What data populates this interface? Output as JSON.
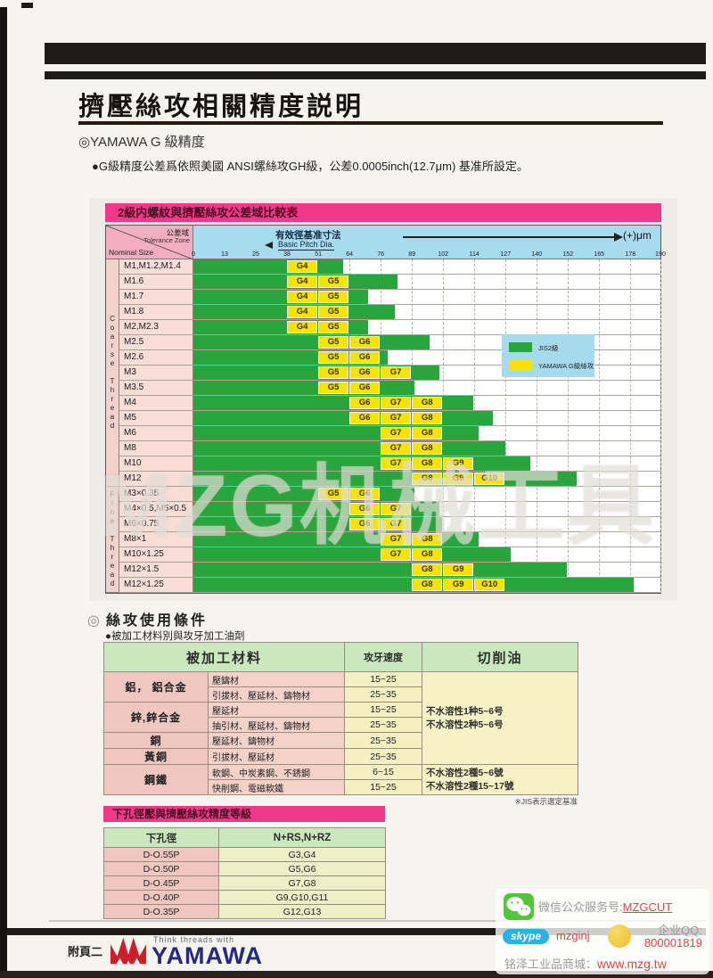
{
  "page": {
    "title": "擠壓絲攻相關精度説明",
    "subtitle": "◎YAMAWA G 級精度",
    "note": "●G級精度公差爲依照美國 ANSI螺絲攻GH級，公差0.0005inch(12.7μm) 基准所設定。"
  },
  "watermark": "MZG机械工具",
  "chart_data": {
    "type": "bar",
    "title": "2級内螺紋與擠壓絲攻公差域比較表",
    "corner_top": "公差域",
    "corner_top_en": "Tolerance Zone",
    "corner_bottom": "Nominal Size",
    "axis_label_cn": "有效徑基准寸法",
    "axis_label_en": "Basic Pitch Dia.",
    "unit_label": "(+)μm",
    "xlim": [
      0,
      190
    ],
    "ticks": [
      0,
      13,
      25,
      38,
      51,
      64,
      76,
      89,
      102,
      114,
      127,
      140,
      152,
      165,
      178,
      190
    ],
    "grade_band_um": 12.7,
    "legend": [
      {
        "label": "JIS2級",
        "color": "#2aa53d"
      },
      {
        "label": "YAMAWA G級絲攻",
        "color": "#f6e400"
      }
    ],
    "groups": [
      {
        "name": "Coarse Thread",
        "rows": [
          {
            "size": "M1,M1.2,M1.4",
            "jis2_max_um": 61,
            "grades": [
              "G4"
            ]
          },
          {
            "size": "M1.6",
            "jis2_max_um": 83,
            "grades": [
              "G4",
              "G5"
            ]
          },
          {
            "size": "M1.7",
            "jis2_max_um": 71,
            "grades": [
              "G4",
              "G5"
            ]
          },
          {
            "size": "M1.8",
            "jis2_max_um": 82,
            "grades": [
              "G4",
              "G5"
            ]
          },
          {
            "size": "M2,M2.3",
            "jis2_max_um": 71,
            "grades": [
              "G4",
              "G5"
            ]
          },
          {
            "size": "M2.5",
            "jis2_max_um": 96,
            "grades": [
              "G5",
              "G6"
            ]
          },
          {
            "size": "M2.6",
            "jis2_max_um": 79,
            "grades": [
              "G5",
              "G6"
            ]
          },
          {
            "size": "M3",
            "jis2_max_um": 100,
            "grades": [
              "G5",
              "G6",
              "G7"
            ]
          },
          {
            "size": "M3.5",
            "jis2_max_um": 90,
            "grades": [
              "G5",
              "G6"
            ]
          },
          {
            "size": "M4",
            "jis2_max_um": 114,
            "grades": [
              "G6",
              "G7",
              "G8"
            ]
          },
          {
            "size": "M5",
            "jis2_max_um": 122,
            "grades": [
              "G6",
              "G7",
              "G8"
            ]
          },
          {
            "size": "M6",
            "jis2_max_um": 116,
            "grades": [
              "G7",
              "G8"
            ]
          },
          {
            "size": "M8",
            "jis2_max_um": 127,
            "grades": [
              "G7",
              "G8"
            ]
          },
          {
            "size": "M10",
            "jis2_max_um": 137,
            "grades": [
              "G7",
              "G8",
              "G9"
            ]
          },
          {
            "size": "M12",
            "jis2_max_um": 156,
            "grades": [
              "G8",
              "G9",
              "G10"
            ]
          }
        ]
      },
      {
        "name": "Fine Thread",
        "rows": [
          {
            "size": "M3×0.35",
            "jis2_max_um": 90,
            "grades": [
              "G5",
              "G6"
            ]
          },
          {
            "size": "M4×0.5,M5×0.5",
            "jis2_max_um": 100,
            "grades": [
              "G6",
              "G7"
            ]
          },
          {
            "size": "M6×0.75",
            "jis2_max_um": 101,
            "grades": [
              "G6",
              "G7"
            ]
          },
          {
            "size": "M8×1",
            "jis2_max_um": 116,
            "grades": [
              "G7",
              "G8"
            ]
          },
          {
            "size": "M10×1.25",
            "jis2_max_um": 129,
            "grades": [
              "G7",
              "G8"
            ]
          },
          {
            "size": "M12×1.5",
            "jis2_max_um": 152,
            "grades": [
              "G8",
              "G9"
            ]
          },
          {
            "size": "M12×1.25",
            "jis2_max_um": 179,
            "grades": [
              "G8",
              "G9",
              "G10"
            ]
          }
        ]
      }
    ]
  },
  "usage": {
    "marker": "◎",
    "section_title": "絲攻使用條件",
    "section_note": "●被加工材料別與攻牙加工油劑",
    "col_material": "被加工材料",
    "col_speed": "攻牙速度",
    "col_oil": "切削油",
    "rows": [
      {
        "material": "鋁， 鋁合金",
        "rowspan": 2,
        "sub": "壓鑄材",
        "speed": "15~25"
      },
      {
        "sub": "引拔材、壓延材、鑄物材",
        "speed": "25~35"
      },
      {
        "material": "鋅,鋅合金",
        "rowspan": 2,
        "sub": "壓延材",
        "speed": "15~25"
      },
      {
        "sub": "抽引材、壓延材、鑄物材",
        "speed": "25~35"
      },
      {
        "material": "銅",
        "rowspan": 1,
        "sub": "壓延材、鑄物材",
        "speed": "25~35"
      },
      {
        "material": "黃銅",
        "rowspan": 1,
        "sub": "引拔材、壓延材",
        "speed": "25~35"
      },
      {
        "material": "鋼鐵",
        "rowspan": 2,
        "sub": "軟鋼、中炭素鋼、不銹鋼",
        "speed": "6~15"
      },
      {
        "sub": "快削鋼、電磁軟鐵",
        "speed": "15~25"
      }
    ],
    "oils": [
      {
        "rowspan": 6,
        "lines": [
          "不水溶性1种5~6号",
          "不水溶性2种5~6号"
        ]
      },
      {
        "rowspan": 2,
        "lines": [
          "不水溶性2種5~6號",
          "不水溶性2種15~17號"
        ]
      }
    ],
    "footnote": "※JIS表示選定基准"
  },
  "hole": {
    "title": "下孔徑壓與擠壓絲攻精度等級",
    "col1": "下孔徑",
    "col2": "N+RS,N+RZ",
    "rows": [
      [
        "D-O.55P",
        "G3,G4"
      ],
      [
        "D-O.50P",
        "G5,G6"
      ],
      [
        "D-O.45P",
        "G7,G8"
      ],
      [
        "D-O.40P",
        "G9,G10,G11"
      ],
      [
        "D-O.35P",
        "G12,G13"
      ]
    ]
  },
  "footer": {
    "page_label": "附頁二",
    "tagline": "Think threads with",
    "brand": "YAMAWA"
  },
  "contact": {
    "wechat_label": "微信公众服务号:",
    "wechat_value": "MZGCUT",
    "skype_logo": "skype",
    "skype_value": "mzginj",
    "qq_label": "企业QQ:",
    "qq_value": "800001819",
    "shop_label": "铭泽工业品商城：",
    "shop_value": "www.mzg.tw"
  }
}
